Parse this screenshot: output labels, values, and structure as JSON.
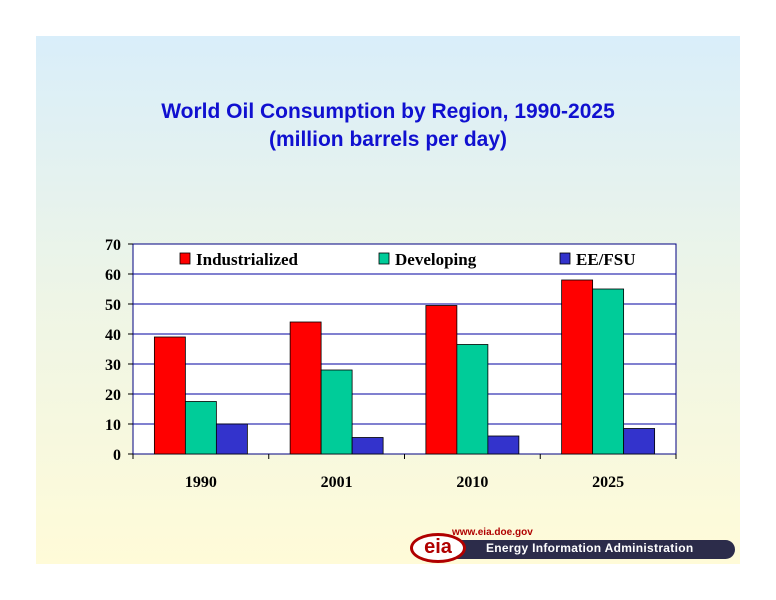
{
  "slide": {
    "title_line1": "World Oil Consumption by Region, 1990-2025",
    "title_line2": "(million barrels per day)"
  },
  "chart_data": {
    "type": "bar",
    "categories": [
      "1990",
      "2001",
      "2010",
      "2025"
    ],
    "series": [
      {
        "name": "Industrialized",
        "values": [
          39,
          44,
          49.5,
          58
        ],
        "color": "#ff0000"
      },
      {
        "name": "Developing",
        "values": [
          17.5,
          28,
          36.5,
          55
        ],
        "color": "#00cc99"
      },
      {
        "name": "EE/FSU",
        "values": [
          10,
          5.5,
          6,
          8.5
        ],
        "color": "#3333cc"
      }
    ],
    "ylim": [
      0,
      70
    ],
    "yticks": [
      0,
      10,
      20,
      30,
      40,
      50,
      60,
      70
    ],
    "grid": true,
    "legend": "top"
  },
  "footer": {
    "url": "www.eia.doe.gov",
    "logo_text": "eia",
    "agency": "Energy Information Administration",
    "brand_color": "#b00000"
  }
}
